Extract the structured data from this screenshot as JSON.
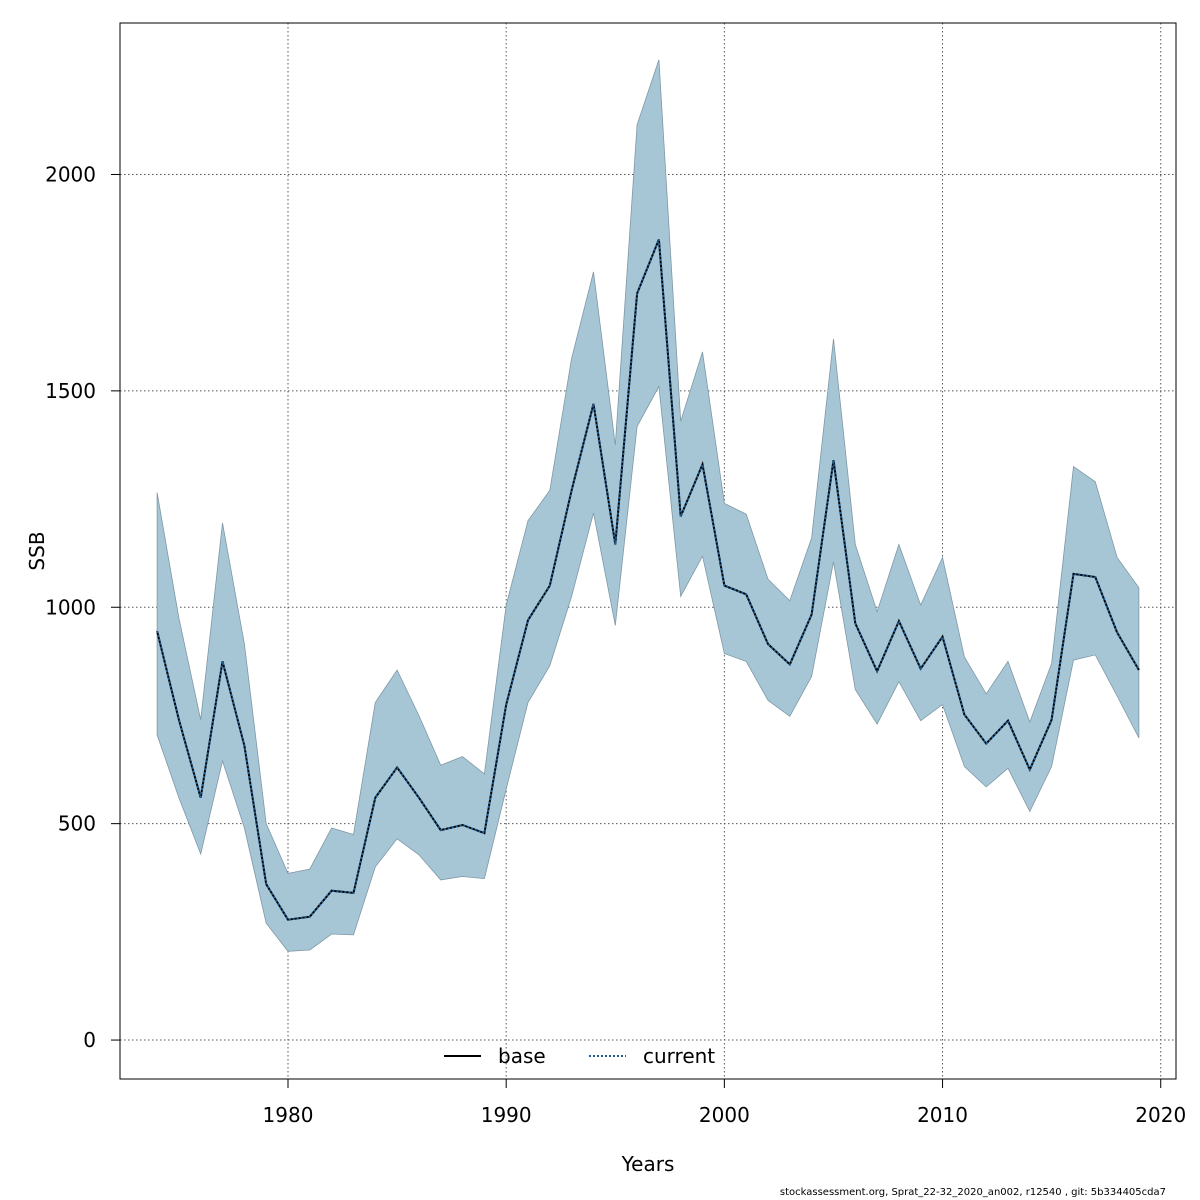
{
  "chart_data": {
    "type": "line",
    "title": "",
    "xlabel": "Years",
    "ylabel": "SSB",
    "xlim": [
      1972.3,
      2020.7
    ],
    "ylim": [
      -90,
      2350
    ],
    "x_ticks": [
      1980,
      1990,
      2000,
      2010,
      2020
    ],
    "y_ticks": [
      0,
      500,
      1000,
      1500,
      2000
    ],
    "grid": true,
    "legend_position": "bottom-center",
    "colors": {
      "band": "#a6c6d6",
      "band_edge": "#7f98a6",
      "base": "#000000",
      "current": "#1f5f96",
      "grid": "#555555"
    },
    "years": [
      1974,
      1975,
      1976,
      1977,
      1978,
      1979,
      1980,
      1981,
      1982,
      1983,
      1984,
      1985,
      1986,
      1987,
      1988,
      1989,
      1990,
      1991,
      1992,
      1993,
      1994,
      1995,
      1996,
      1997,
      1998,
      1999,
      2000,
      2001,
      2002,
      2003,
      2004,
      2005,
      2006,
      2007,
      2008,
      2009,
      2010,
      2011,
      2012,
      2013,
      2014,
      2015,
      2016,
      2017,
      2018,
      2019
    ],
    "upper": [
      1265,
      975,
      740,
      1195,
      915,
      500,
      385,
      395,
      490,
      475,
      780,
      855,
      750,
      635,
      655,
      615,
      1005,
      1200,
      1270,
      1575,
      1775,
      1375,
      2115,
      2265,
      1430,
      1590,
      1240,
      1215,
      1065,
      1015,
      1160,
      1620,
      1145,
      990,
      1145,
      1005,
      1115,
      885,
      800,
      875,
      735,
      870,
      1325,
      1290,
      1115,
      1045
    ],
    "lower": [
      705,
      560,
      430,
      645,
      490,
      270,
      205,
      208,
      245,
      243,
      400,
      465,
      428,
      370,
      378,
      373,
      580,
      780,
      865,
      1025,
      1218,
      958,
      1418,
      1510,
      1025,
      1118,
      893,
      875,
      785,
      748,
      840,
      1105,
      810,
      730,
      828,
      738,
      775,
      632,
      585,
      628,
      528,
      632,
      878,
      890,
      795,
      698
    ],
    "series": [
      {
        "name": "base",
        "style": "solid",
        "values": [
          945,
          740,
          560,
          875,
          680,
          360,
          278,
          285,
          345,
          340,
          560,
          630,
          560,
          485,
          497,
          478,
          775,
          970,
          1050,
          1270,
          1470,
          1145,
          1725,
          1850,
          1210,
          1330,
          1050,
          1030,
          915,
          868,
          983,
          1340,
          963,
          852,
          968,
          858,
          932,
          752,
          685,
          738,
          625,
          740,
          1077,
          1070,
          942,
          855
        ]
      },
      {
        "name": "current",
        "style": "dotted",
        "values": [
          945,
          740,
          560,
          875,
          680,
          360,
          278,
          285,
          345,
          340,
          560,
          630,
          560,
          485,
          497,
          478,
          775,
          970,
          1050,
          1270,
          1470,
          1145,
          1725,
          1850,
          1210,
          1330,
          1050,
          1030,
          915,
          868,
          983,
          1340,
          963,
          852,
          968,
          858,
          932,
          752,
          685,
          738,
          625,
          740,
          1077,
          1070,
          942,
          855
        ]
      }
    ]
  },
  "footer_text": "stockassessment.org, Sprat_22-32_2020_an002, r12540 , git: 5b334405cda7"
}
